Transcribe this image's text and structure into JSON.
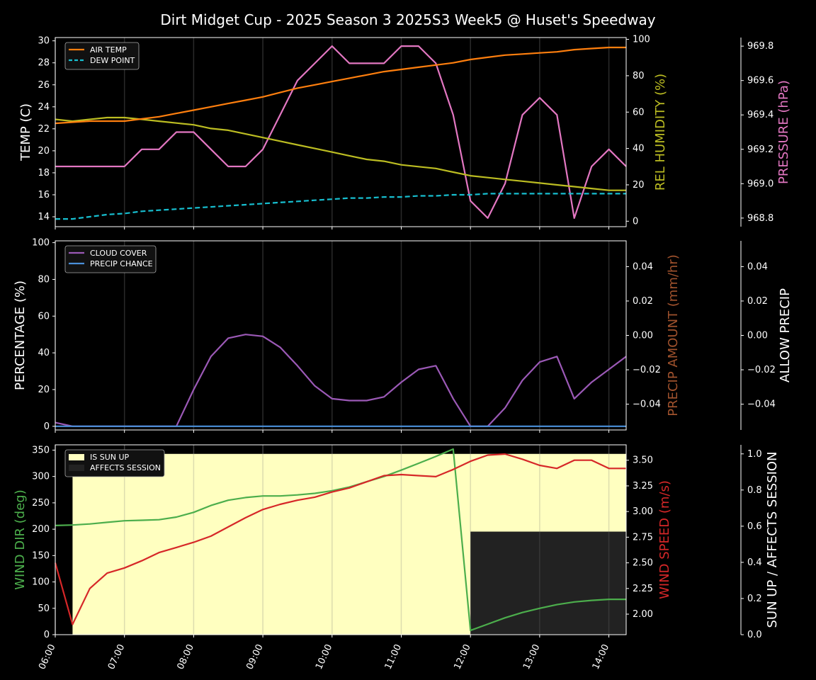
{
  "title": "Dirt Midget Cup - 2025 Season 3 2025S3 Week5 @ Huset's Speedway",
  "colors": {
    "air_temp": "#ff7f0e",
    "dew_point": "#17becf",
    "humidity": "#bcbd22",
    "pressure": "#e377c2",
    "cloud": "#9b59b6",
    "precip_chance": "#4a90d9",
    "precip_amount": "#a0522d",
    "wind_dir": "#4cae4c",
    "wind_speed": "#d62728",
    "sun_up": "#ffffc0",
    "affects": "#222222"
  },
  "chart_data": [
    {
      "type": "line",
      "title": "",
      "x": [
        "06:00",
        "06:15",
        "06:30",
        "06:45",
        "07:00",
        "07:15",
        "07:30",
        "07:45",
        "08:00",
        "08:15",
        "08:30",
        "08:45",
        "09:00",
        "09:15",
        "09:30",
        "09:45",
        "10:00",
        "10:15",
        "10:30",
        "10:45",
        "11:00",
        "11:15",
        "11:30",
        "11:45",
        "12:00",
        "12:15",
        "12:30",
        "12:45",
        "13:00",
        "13:15",
        "13:30",
        "13:45",
        "14:00",
        "14:15"
      ],
      "xticks": [
        "06:00",
        "07:00",
        "08:00",
        "09:00",
        "10:00",
        "11:00",
        "12:00",
        "13:00",
        "14:00"
      ],
      "ylabel": "TEMP (C)",
      "ylabel_right": "REL HUMIDITY (%)",
      "ylabel_right2": "PRESSURE (hPa)",
      "ylim": [
        13.1,
        30.3
      ],
      "yticks": [
        14,
        16,
        18,
        20,
        22,
        24,
        26,
        28,
        30
      ],
      "ylim_right": [
        -3,
        101
      ],
      "yticks_right": [
        0,
        20,
        40,
        60,
        80,
        100
      ],
      "ylim_right2": [
        968.75,
        969.85
      ],
      "yticks_right2": [
        "968.8",
        "969.0",
        "969.2",
        "969.4",
        "969.6",
        "969.8"
      ],
      "legend": [
        "AIR TEMP",
        "DEW POINT"
      ],
      "series": [
        {
          "name": "AIR TEMP",
          "axis": "left",
          "values": [
            22.5,
            22.6,
            22.7,
            22.7,
            22.7,
            22.9,
            23.1,
            23.4,
            23.7,
            24.0,
            24.3,
            24.6,
            24.9,
            25.3,
            25.7,
            26.0,
            26.3,
            26.6,
            26.9,
            27.2,
            27.4,
            27.6,
            27.8,
            28.0,
            28.3,
            28.5,
            28.7,
            28.8,
            28.9,
            29.0,
            29.2,
            29.3,
            29.4,
            29.4
          ]
        },
        {
          "name": "DEW POINT",
          "axis": "left",
          "style": "dashed",
          "values": [
            13.8,
            13.8,
            14.0,
            14.2,
            14.3,
            14.5,
            14.6,
            14.7,
            14.8,
            14.9,
            15.0,
            15.1,
            15.2,
            15.3,
            15.4,
            15.5,
            15.6,
            15.7,
            15.7,
            15.8,
            15.8,
            15.9,
            15.9,
            16.0,
            16.0,
            16.1,
            16.1,
            16.1,
            16.1,
            16.1,
            16.1,
            16.1,
            16.1,
            16.1
          ]
        },
        {
          "name": "REL HUMIDITY",
          "axis": "right",
          "values": [
            56,
            55,
            56,
            57,
            57,
            56,
            55,
            54,
            53,
            51,
            50,
            48,
            46,
            44,
            42,
            40,
            38,
            36,
            34,
            33,
            31,
            30,
            29,
            27,
            25,
            24,
            23,
            22,
            21,
            20,
            19,
            18,
            17,
            17
          ]
        },
        {
          "name": "PRESSURE",
          "axis": "right2",
          "values": [
            969.1,
            969.1,
            969.1,
            969.1,
            969.1,
            969.2,
            969.2,
            969.3,
            969.3,
            969.2,
            969.1,
            969.1,
            969.2,
            969.4,
            969.6,
            969.7,
            969.8,
            969.7,
            969.7,
            969.7,
            969.8,
            969.8,
            969.7,
            969.4,
            968.9,
            968.8,
            969.0,
            969.4,
            969.5,
            969.4,
            968.8,
            969.1,
            969.2,
            969.1
          ]
        }
      ]
    },
    {
      "type": "line",
      "title": "",
      "ylabel": "PERCENTAGE (%)",
      "ylabel_right": "PRECIP AMOUNT (mm/hr)",
      "ylabel_right2": "ALLOW PRECIP",
      "ylim": [
        -2,
        101
      ],
      "yticks": [
        0,
        20,
        40,
        60,
        80,
        100
      ],
      "ylim_right": [
        -0.055,
        0.055
      ],
      "yticks_right": [
        "0.04",
        "0.02",
        "0.00",
        "−0.02",
        "−0.04"
      ],
      "yticks_right2": [
        "0.04",
        "0.02",
        "0.00",
        "−0.02",
        "−0.04"
      ],
      "legend": [
        "CLOUD COVER",
        "PRECIP CHANCE"
      ],
      "series": [
        {
          "name": "CLOUD COVER",
          "values": [
            2,
            0,
            0,
            0,
            0,
            0,
            0,
            0,
            20,
            38,
            48,
            50,
            49,
            43,
            33,
            22,
            15,
            14,
            14,
            16,
            24,
            31,
            33,
            15,
            0,
            0,
            10,
            25,
            35,
            38,
            15,
            24,
            31,
            38
          ]
        },
        {
          "name": "PRECIP CHANCE",
          "values": [
            0,
            0,
            0,
            0,
            0,
            0,
            0,
            0,
            0,
            0,
            0,
            0,
            0,
            0,
            0,
            0,
            0,
            0,
            0,
            0,
            0,
            0,
            0,
            0,
            0,
            0,
            0,
            0,
            0,
            0,
            0,
            0,
            0,
            0
          ]
        },
        {
          "name": "PRECIP AMOUNT",
          "axis": "right",
          "values": [
            0,
            0,
            0,
            0,
            0,
            0,
            0,
            0,
            0,
            0,
            0,
            0,
            0,
            0,
            0,
            0,
            0,
            0,
            0,
            0,
            0,
            0,
            0,
            0,
            0,
            0,
            0,
            0,
            0,
            0,
            0,
            0,
            0,
            0
          ]
        }
      ]
    },
    {
      "type": "line",
      "title": "",
      "ylabel": "WIND DIR (deg)",
      "ylabel_right": "WIND SPEED (m/s)",
      "ylabel_right2": "SUN UP / AFFECTS SESSION",
      "ylim": [
        0,
        360
      ],
      "yticks": [
        0,
        50,
        100,
        150,
        200,
        250,
        300,
        350
      ],
      "ylim_right": [
        1.8,
        3.65
      ],
      "yticks_right": [
        "2.00",
        "2.25",
        "2.50",
        "2.75",
        "3.00",
        "3.25",
        "3.50"
      ],
      "ylim_right2": [
        0,
        1.05
      ],
      "yticks_right2": [
        "0.0",
        "0.2",
        "0.4",
        "0.6",
        "0.8",
        "1.0"
      ],
      "legend": [
        "IS SUN UP",
        "AFFECTS SESSION"
      ],
      "sun_up": {
        "from": "06:15",
        "to": "14:15",
        "value": 1.0
      },
      "affects_session": {
        "from": "12:00",
        "to": "14:15",
        "value": 0.57
      },
      "series": [
        {
          "name": "WIND DIR",
          "axis": "left",
          "values": [
            207,
            208,
            210,
            213,
            216,
            217,
            218,
            223,
            232,
            245,
            255,
            260,
            263,
            263,
            265,
            268,
            273,
            280,
            290,
            300,
            312,
            325,
            338,
            352,
            8,
            20,
            32,
            42,
            50,
            57,
            62,
            65,
            67,
            67
          ]
        },
        {
          "name": "WIND SPEED",
          "axis": "right",
          "values": [
            2.5,
            1.9,
            2.25,
            2.4,
            2.45,
            2.52,
            2.6,
            2.65,
            2.7,
            2.76,
            2.85,
            2.94,
            3.02,
            3.07,
            3.11,
            3.14,
            3.19,
            3.23,
            3.29,
            3.35,
            3.36,
            3.35,
            3.34,
            3.41,
            3.49,
            3.55,
            3.56,
            3.51,
            3.45,
            3.42,
            3.5,
            3.5,
            3.42,
            3.42
          ]
        }
      ]
    }
  ]
}
